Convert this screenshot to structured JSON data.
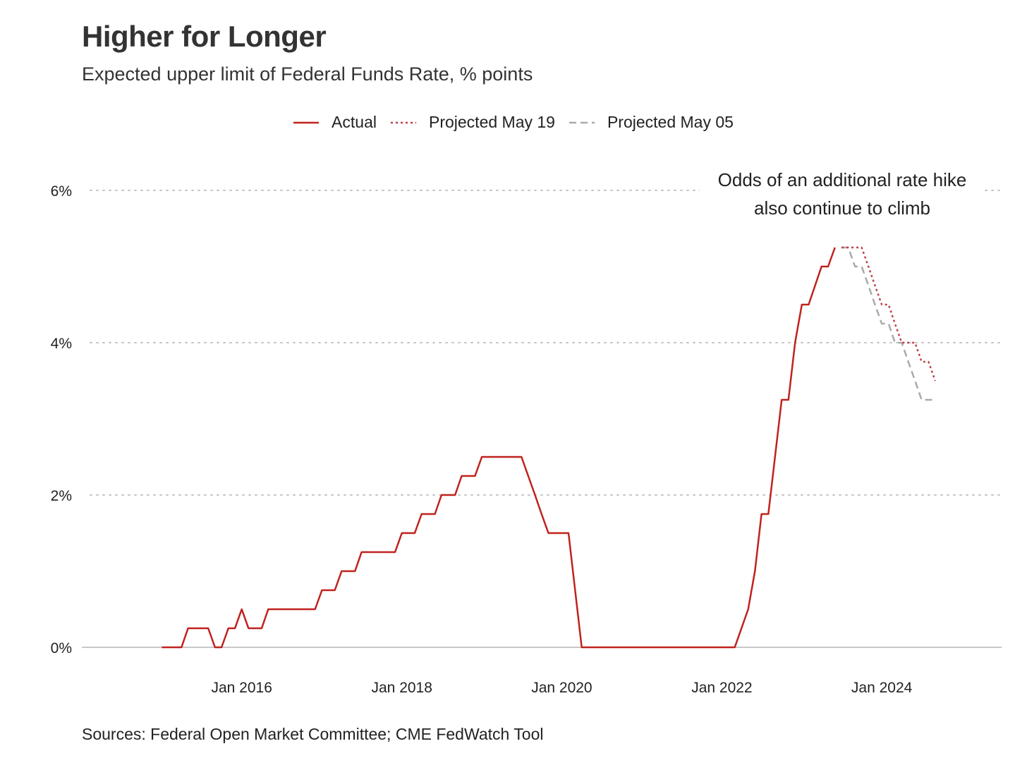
{
  "chart_data": {
    "type": "line",
    "title": "Higher for Longer",
    "subtitle": "Expected upper limit of Federal Funds Rate, % points",
    "source": "Sources: Federal Open Market Committee; CME FedWatch Tool",
    "annotation": [
      "Odds of an additional rate hike",
      "also continue to climb"
    ],
    "ylim": [
      0,
      6
    ],
    "yticks": [
      0,
      2,
      4,
      6
    ],
    "ytick_labels": [
      "0%",
      "2%",
      "4%",
      "6%"
    ],
    "xlim": [
      "2014-01-01",
      "2025-07-01"
    ],
    "xticks": [
      "2016-01-01",
      "2018-01-01",
      "2020-01-01",
      "2022-01-01",
      "2024-01-01"
    ],
    "xtick_labels": [
      "Jan 2016",
      "Jan 2018",
      "Jan 2020",
      "Jan 2022",
      "Jan 2024"
    ],
    "grid": "horizontal-dotted",
    "legend_position": "top",
    "series": [
      {
        "name": "Actual",
        "color": "#c0221e",
        "style": "solid",
        "points": [
          [
            "2015-01-01",
            0.0
          ],
          [
            "2015-04-01",
            0.0
          ],
          [
            "2015-05-01",
            0.25
          ],
          [
            "2015-08-01",
            0.25
          ],
          [
            "2015-09-01",
            0.0
          ],
          [
            "2015-10-01",
            0.0
          ],
          [
            "2015-11-01",
            0.25
          ],
          [
            "2015-12-01",
            0.25
          ],
          [
            "2016-01-01",
            0.5
          ],
          [
            "2016-02-01",
            0.25
          ],
          [
            "2016-04-01",
            0.25
          ],
          [
            "2016-05-01",
            0.5
          ],
          [
            "2016-12-01",
            0.5
          ],
          [
            "2017-01-01",
            0.75
          ],
          [
            "2017-03-01",
            0.75
          ],
          [
            "2017-04-01",
            1.0
          ],
          [
            "2017-06-01",
            1.0
          ],
          [
            "2017-07-01",
            1.25
          ],
          [
            "2017-12-01",
            1.25
          ],
          [
            "2018-01-01",
            1.5
          ],
          [
            "2018-03-01",
            1.5
          ],
          [
            "2018-04-01",
            1.75
          ],
          [
            "2018-06-01",
            1.75
          ],
          [
            "2018-07-01",
            2.0
          ],
          [
            "2018-09-01",
            2.0
          ],
          [
            "2018-10-01",
            2.25
          ],
          [
            "2018-12-01",
            2.25
          ],
          [
            "2019-01-01",
            2.5
          ],
          [
            "2019-07-01",
            2.5
          ],
          [
            "2019-08-01",
            2.25
          ],
          [
            "2019-09-01",
            2.0
          ],
          [
            "2019-10-01",
            1.75
          ],
          [
            "2019-11-01",
            1.5
          ],
          [
            "2020-02-01",
            1.5
          ],
          [
            "2020-04-01",
            0.0
          ],
          [
            "2022-03-01",
            0.0
          ],
          [
            "2022-05-01",
            0.5
          ],
          [
            "2022-06-01",
            1.0
          ],
          [
            "2022-07-01",
            1.75
          ],
          [
            "2022-08-01",
            1.75
          ],
          [
            "2022-10-01",
            3.25
          ],
          [
            "2022-11-01",
            3.25
          ],
          [
            "2022-12-01",
            4.0
          ],
          [
            "2023-01-01",
            4.5
          ],
          [
            "2023-02-01",
            4.5
          ],
          [
            "2023-04-01",
            5.0
          ],
          [
            "2023-05-01",
            5.0
          ],
          [
            "2023-06-01",
            5.25
          ]
        ]
      },
      {
        "name": "Projected May 19",
        "color": "#c0414a",
        "style": "dotted",
        "points": [
          [
            "2023-07-01",
            5.25
          ],
          [
            "2023-10-01",
            5.25
          ],
          [
            "2023-11-01",
            5.0
          ],
          [
            "2023-12-01",
            4.75
          ],
          [
            "2024-01-01",
            4.5
          ],
          [
            "2024-02-01",
            4.5
          ],
          [
            "2024-03-01",
            4.25
          ],
          [
            "2024-04-01",
            4.0
          ],
          [
            "2024-06-01",
            4.0
          ],
          [
            "2024-07-01",
            3.75
          ],
          [
            "2024-08-01",
            3.75
          ],
          [
            "2024-09-01",
            3.5
          ]
        ]
      },
      {
        "name": "Projected May 05",
        "color": "#aaaaaa",
        "style": "dashed",
        "points": [
          [
            "2023-07-01",
            5.25
          ],
          [
            "2023-08-01",
            5.25
          ],
          [
            "2023-09-01",
            5.0
          ],
          [
            "2023-10-01",
            5.0
          ],
          [
            "2023-11-01",
            4.75
          ],
          [
            "2023-12-01",
            4.5
          ],
          [
            "2024-01-01",
            4.25
          ],
          [
            "2024-02-01",
            4.25
          ],
          [
            "2024-03-01",
            4.0
          ],
          [
            "2024-04-01",
            4.0
          ],
          [
            "2024-05-01",
            3.75
          ],
          [
            "2024-06-01",
            3.5
          ],
          [
            "2024-07-01",
            3.25
          ],
          [
            "2024-09-01",
            3.25
          ]
        ]
      }
    ]
  }
}
